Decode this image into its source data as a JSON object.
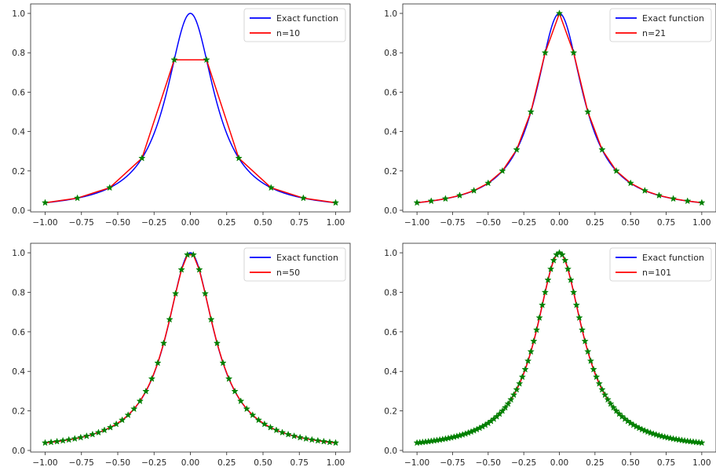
{
  "chart_data": [
    {
      "type": "line",
      "xlim": [
        -1.1,
        1.1
      ],
      "ylim": [
        -0.008,
        1.048
      ],
      "xticks": [
        -1.0,
        -0.75,
        -0.5,
        -0.25,
        0.0,
        0.25,
        0.5,
        0.75,
        1.0
      ],
      "xtick_labels": [
        "−1.00",
        "−0.75",
        "−0.50",
        "−0.25",
        "0.00",
        "0.25",
        "0.50",
        "0.75",
        "1.00"
      ],
      "yticks": [
        0.0,
        0.2,
        0.4,
        0.6,
        0.8,
        1.0
      ],
      "ytick_labels": [
        "0.0",
        "0.2",
        "0.4",
        "0.6",
        "0.8",
        "1.0"
      ],
      "grid": false,
      "legend": "top-right",
      "series": [
        {
          "name": "Exact function",
          "color": "#0000ff",
          "marker": "none",
          "x_range": [
            -1.0,
            1.0
          ],
          "function": "1/(1+25x^2)"
        },
        {
          "name": "n=10",
          "color": "#ff0000",
          "marker": "green-star",
          "n": 10,
          "x_range": [
            -1.0,
            1.0
          ]
        }
      ]
    },
    {
      "type": "line",
      "xlim": [
        -1.1,
        1.1
      ],
      "ylim": [
        -0.008,
        1.048
      ],
      "xticks": [
        -1.0,
        -0.75,
        -0.5,
        -0.25,
        0.0,
        0.25,
        0.5,
        0.75,
        1.0
      ],
      "xtick_labels": [
        "−1.00",
        "−0.75",
        "−0.50",
        "−0.25",
        "0.00",
        "0.25",
        "0.50",
        "0.75",
        "1.00"
      ],
      "yticks": [
        0.0,
        0.2,
        0.4,
        0.6,
        0.8,
        1.0
      ],
      "ytick_labels": [
        "0.0",
        "0.2",
        "0.4",
        "0.6",
        "0.8",
        "1.0"
      ],
      "grid": false,
      "legend": "top-right",
      "series": [
        {
          "name": "Exact function",
          "color": "#0000ff",
          "marker": "none",
          "x_range": [
            -1.0,
            1.0
          ],
          "function": "1/(1+25x^2)"
        },
        {
          "name": "n=21",
          "color": "#ff0000",
          "marker": "green-star",
          "n": 21,
          "x_range": [
            -1.0,
            1.0
          ]
        }
      ]
    },
    {
      "type": "line",
      "xlim": [
        -1.1,
        1.1
      ],
      "ylim": [
        -0.008,
        1.048
      ],
      "xticks": [
        -1.0,
        -0.75,
        -0.5,
        -0.25,
        0.0,
        0.25,
        0.5,
        0.75,
        1.0
      ],
      "xtick_labels": [
        "−1.00",
        "−0.75",
        "−0.50",
        "−0.25",
        "0.00",
        "0.25",
        "0.50",
        "0.75",
        "1.00"
      ],
      "yticks": [
        0.0,
        0.2,
        0.4,
        0.6,
        0.8,
        1.0
      ],
      "ytick_labels": [
        "0.0",
        "0.2",
        "0.4",
        "0.6",
        "0.8",
        "1.0"
      ],
      "grid": false,
      "legend": "top-right",
      "series": [
        {
          "name": "Exact function",
          "color": "#0000ff",
          "marker": "none",
          "x_range": [
            -1.0,
            1.0
          ],
          "function": "1/(1+25x^2)"
        },
        {
          "name": "n=50",
          "color": "#ff0000",
          "marker": "green-star",
          "n": 50,
          "x_range": [
            -1.0,
            1.0
          ]
        }
      ]
    },
    {
      "type": "line",
      "xlim": [
        -1.1,
        1.1
      ],
      "ylim": [
        -0.008,
        1.048
      ],
      "xticks": [
        -1.0,
        -0.75,
        -0.5,
        -0.25,
        0.0,
        0.25,
        0.5,
        0.75,
        1.0
      ],
      "xtick_labels": [
        "−1.00",
        "−0.75",
        "−0.50",
        "−0.25",
        "0.00",
        "0.25",
        "0.50",
        "0.75",
        "1.00"
      ],
      "yticks": [
        0.0,
        0.2,
        0.4,
        0.6,
        0.8,
        1.0
      ],
      "ytick_labels": [
        "0.0",
        "0.2",
        "0.4",
        "0.6",
        "0.8",
        "1.0"
      ],
      "grid": false,
      "legend": "top-right",
      "series": [
        {
          "name": "Exact function",
          "color": "#0000ff",
          "marker": "none",
          "x_range": [
            -1.0,
            1.0
          ],
          "function": "1/(1+25x^2)"
        },
        {
          "name": "n=101",
          "color": "#ff0000",
          "marker": "green-star",
          "n": 101,
          "x_range": [
            -1.0,
            1.0
          ]
        }
      ]
    }
  ],
  "colors": {
    "exact": "#0000ff",
    "approx": "#ff0000",
    "marker": "#008000",
    "axes": "#262626"
  }
}
